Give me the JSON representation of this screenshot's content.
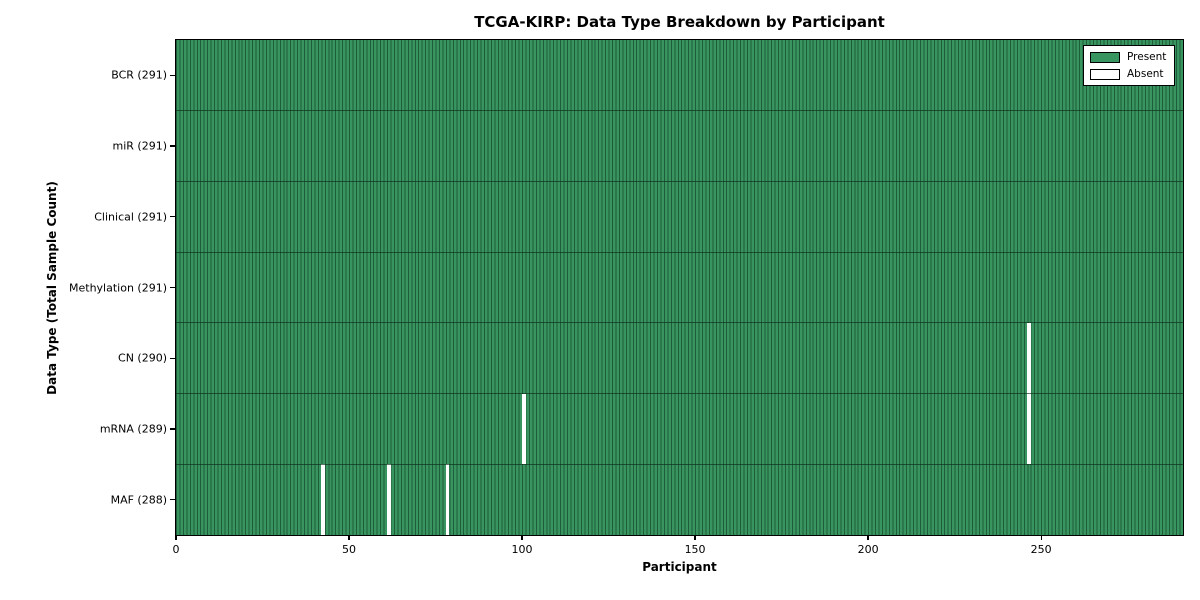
{
  "chart_data": {
    "type": "heatmap",
    "title": "TCGA-KIRP: Data Type Breakdown by Participant",
    "xlabel": "Participant",
    "ylabel": "Data Type (Total Sample Count)",
    "n_participants": 291,
    "x_ticks": [
      0,
      50,
      100,
      150,
      200,
      250
    ],
    "rows": [
      {
        "label": "BCR",
        "total": 291,
        "tick_label": "BCR (291)",
        "absent_participants": []
      },
      {
        "label": "miR",
        "total": 291,
        "tick_label": "miR (291)",
        "absent_participants": []
      },
      {
        "label": "Clinical",
        "total": 291,
        "tick_label": "Clinical (291)",
        "absent_participants": []
      },
      {
        "label": "Methylation",
        "total": 291,
        "tick_label": "Methylation (291)",
        "absent_participants": []
      },
      {
        "label": "CN",
        "total": 290,
        "tick_label": "CN (290)",
        "absent_participants": [
          246
        ]
      },
      {
        "label": "mRNA",
        "total": 289,
        "tick_label": "mRNA (289)",
        "absent_participants": [
          100,
          246
        ]
      },
      {
        "label": "MAF",
        "total": 288,
        "tick_label": "MAF (288)",
        "absent_participants": [
          42,
          61,
          78
        ]
      }
    ],
    "legend": {
      "position": "upper-right",
      "items": [
        {
          "label": "Present",
          "color": "#389560"
        },
        {
          "label": "Absent",
          "color": "#ffffff"
        }
      ]
    },
    "colors": {
      "present_fill": "#389560",
      "cell_edge": "#1e5c3a",
      "absent_fill": "#ffffff",
      "row_divider": "#0a2a1a",
      "axis": "#000000"
    },
    "grid": false
  }
}
